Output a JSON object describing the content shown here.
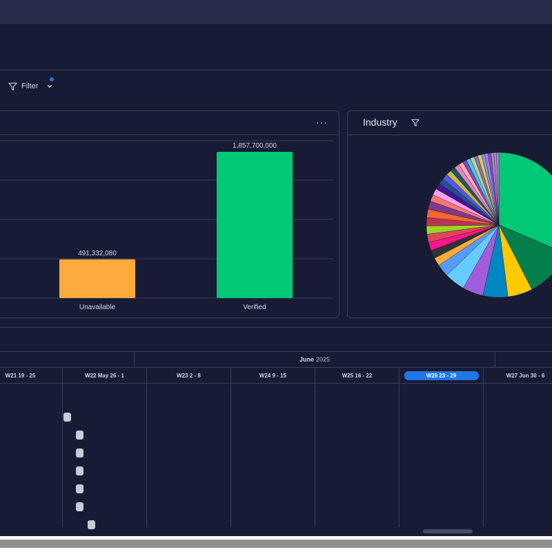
{
  "toolbar": {
    "filter_label": "Filter"
  },
  "status_widget": {
    "more_label": "···",
    "chart_data": {
      "type": "bar",
      "categories": [
        "Unavailable",
        "Verified"
      ],
      "values": [
        491332080,
        1857700000
      ],
      "value_labels": [
        "491,332,080",
        "1,857,700,000"
      ],
      "colors": [
        "#fdab3d",
        "#00c875"
      ],
      "grid": true
    }
  },
  "industry_widget": {
    "title": "Industry",
    "chart_data": {
      "type": "pie",
      "values": [
        34,
        12,
        6,
        6,
        5,
        5,
        3,
        2,
        2,
        2,
        2,
        2,
        2,
        2,
        2,
        1.6,
        1.6,
        1.5,
        1.4,
        1.4,
        1.3,
        1.2,
        1.2,
        1.1,
        1,
        1,
        1,
        0.9,
        0.9,
        0.8,
        0.8,
        0.7,
        0.7,
        0.6,
        0.6
      ],
      "colors": [
        "#00c875",
        "#037f4c",
        "#ffcb00",
        "#0086c0",
        "#a25ddc",
        "#66ccff",
        "#579bfc",
        "#fdab3d",
        "#333333",
        "#ff158a",
        "#e2445c",
        "#9cd326",
        "#bb3354",
        "#ff642e",
        "#7e3b8a",
        "#ff7575",
        "#faa1f1",
        "#401694",
        "#225091",
        "#5559df",
        "#cab641",
        "#175a63",
        "#e484bd",
        "#ffadad",
        "#784bd1",
        "#4eccc6",
        "#c4c4c4",
        "#808080",
        "#fdbc64",
        "#3db8eb",
        "#ff5ac4",
        "#2b76e5",
        "#d974b0",
        "#9d99b9",
        "#b57de3"
      ]
    }
  },
  "timeline": {
    "months": [
      {
        "name": "",
        "year": ""
      },
      {
        "name": "June",
        "year": "2025"
      },
      {
        "name": "",
        "year": ""
      }
    ],
    "weeks": [
      {
        "label": "W21 19 - 25"
      },
      {
        "label": "W22 May 26 - 1"
      },
      {
        "label": "W23 2 - 8"
      },
      {
        "label": "W24 9 - 15"
      },
      {
        "label": "W25 16 - 22"
      },
      {
        "label": "W26 23 - 29",
        "current": true
      },
      {
        "label": "W27 Jun 30 - 6"
      }
    ]
  }
}
